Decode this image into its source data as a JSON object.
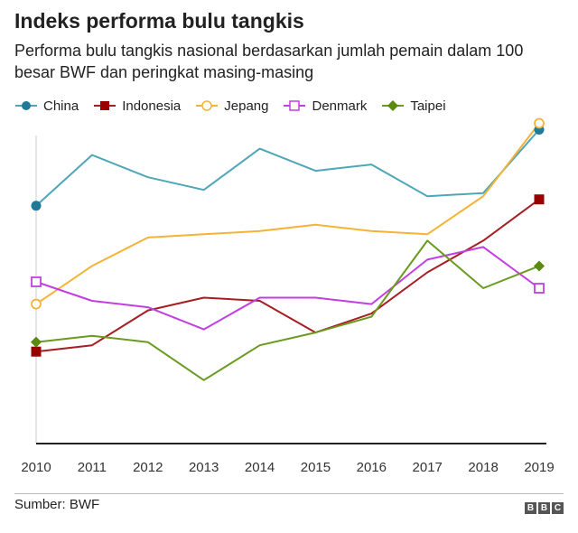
{
  "header": {
    "title": "Indeks performa bulu tangkis",
    "subtitle": "Performa bulu tangkis nasional berdasarkan jumlah pemain dalam 100 besar BWF dan peringkat masing-masing"
  },
  "footer": {
    "source": "Sumber: BWF",
    "logo_letters": [
      "B",
      "B",
      "C"
    ]
  },
  "chart_data": {
    "type": "line",
    "title": "Indeks performa bulu tangkis",
    "xlabel": "",
    "ylabel": "",
    "ylim": [
      0,
      100
    ],
    "grid": false,
    "legend_position": "top-left",
    "x": [
      "2010",
      "2011",
      "2012",
      "2013",
      "2014",
      "2015",
      "2016",
      "2017",
      "2018",
      "2019"
    ],
    "series": [
      {
        "name": "China",
        "color": "#4ea6b8",
        "marker": "circle-filled",
        "values": [
          75,
          91,
          84,
          80,
          93,
          86,
          88,
          78,
          79,
          99
        ]
      },
      {
        "name": "Indonesia",
        "color": "#a61e22",
        "marker": "square-filled",
        "values": [
          29,
          31,
          42,
          46,
          45,
          35,
          41,
          54,
          64,
          77
        ]
      },
      {
        "name": "Jepang",
        "color": "#f5b336",
        "marker": "circle-open",
        "values": [
          44,
          56,
          65,
          66,
          67,
          69,
          67,
          66,
          78,
          101
        ]
      },
      {
        "name": "Denmark",
        "color": "#c33ee0",
        "marker": "square-open",
        "values": [
          51,
          45,
          43,
          36,
          46,
          46,
          44,
          58,
          62,
          49
        ]
      },
      {
        "name": "Taipei",
        "color": "#6a9a1f",
        "marker": "diamond-filled",
        "values": [
          32,
          34,
          32,
          20,
          31,
          35,
          40,
          64,
          49,
          56
        ]
      }
    ]
  }
}
